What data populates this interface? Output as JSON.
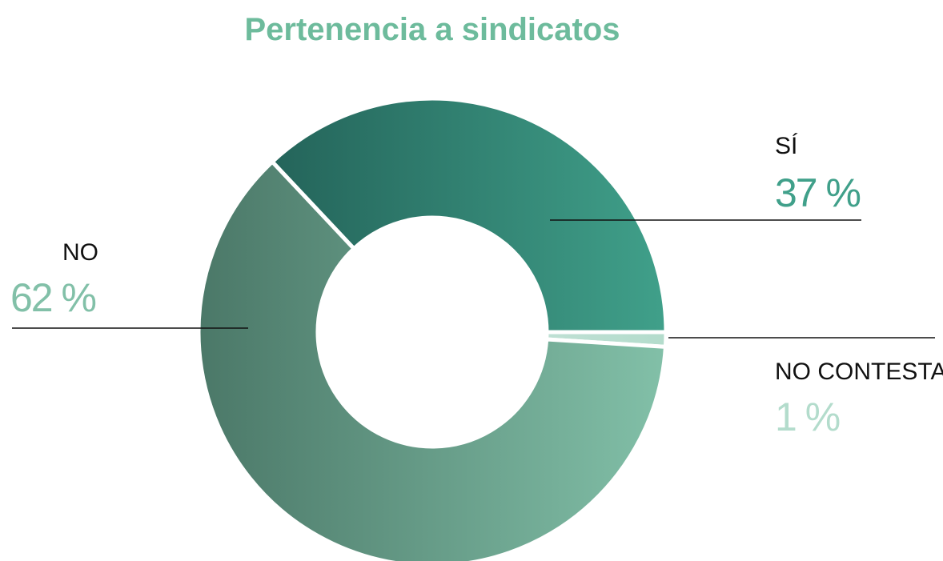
{
  "chart_data": {
    "type": "donut",
    "title": "Pertenencia a sindicatos",
    "categories": [
      "SÍ",
      "NO CONTESTA",
      "NO"
    ],
    "values": [
      37,
      1,
      62
    ],
    "value_labels": [
      "37 %",
      "1 %",
      "62 %"
    ],
    "colors": [
      [
        "#24645a",
        "#40a08a"
      ],
      [
        "#bfe0d4",
        "#b3dccc"
      ],
      [
        "#4b7868",
        "#82c0a8"
      ]
    ]
  }
}
